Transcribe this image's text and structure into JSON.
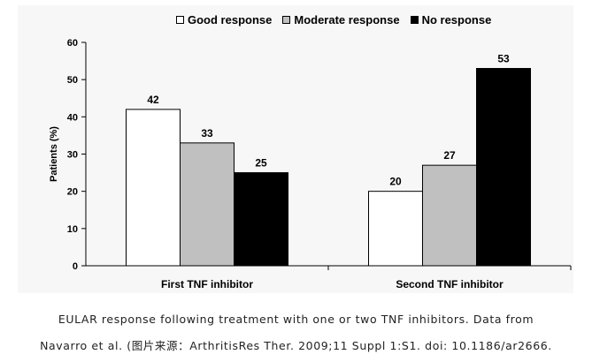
{
  "legend": [
    {
      "label": "Good response",
      "color": "#ffffff"
    },
    {
      "label": "Moderate response",
      "color": "#c0c0c0"
    },
    {
      "label": "No response",
      "color": "#000000"
    }
  ],
  "caption": {
    "line1": "EULAR response following treatment with one or two TNF inhibitors. Data from",
    "line2": "Navarro et al. (图片来源：ArthritisRes Ther. 2009;11 Suppl 1:S1. doi: 10.1186/ar2666."
  },
  "chart_data": {
    "type": "bar",
    "categories": [
      "First TNF inhibitor",
      "Second TNF inhibitor"
    ],
    "series": [
      {
        "name": "Good response",
        "color": "#ffffff",
        "values": [
          42,
          20
        ]
      },
      {
        "name": "Moderate response",
        "color": "#c0c0c0",
        "values": [
          33,
          27
        ]
      },
      {
        "name": "No response",
        "color": "#000000",
        "values": [
          25,
          53
        ]
      }
    ],
    "ylabel": "Patients (%)",
    "xlabel": "",
    "ylim": [
      0,
      60
    ],
    "yticks": [
      0,
      10,
      20,
      30,
      40,
      50,
      60
    ],
    "legend_position": "top",
    "grid": false
  }
}
